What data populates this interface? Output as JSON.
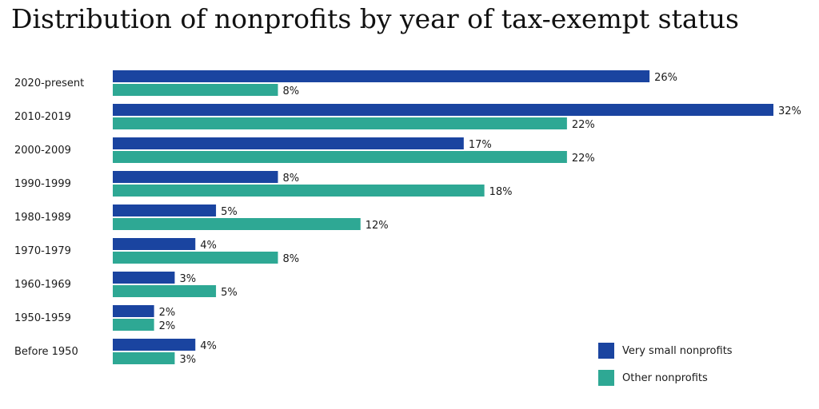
{
  "chart_data": {
    "type": "bar",
    "orientation": "horizontal",
    "title": "Distribution of nonprofits by year of tax-exempt status",
    "categories": [
      "2020-present",
      "2010-2019",
      "2000-2009",
      "1990-1999",
      "1980-1989",
      "1970-1979",
      "1960-1969",
      "1950-1959",
      "Before 1950"
    ],
    "series": [
      {
        "name": "Very small nonprofits",
        "color": "#1a44a0",
        "values": [
          26,
          32,
          17,
          8,
          5,
          4,
          3,
          2,
          4
        ]
      },
      {
        "name": "Other nonprofits",
        "color": "#2ea894",
        "values": [
          8,
          22,
          22,
          18,
          12,
          8,
          5,
          2,
          3
        ]
      }
    ],
    "value_suffix": "%",
    "xlim": [
      0,
      32
    ],
    "grid": false,
    "legend_position": "bottom-right"
  }
}
